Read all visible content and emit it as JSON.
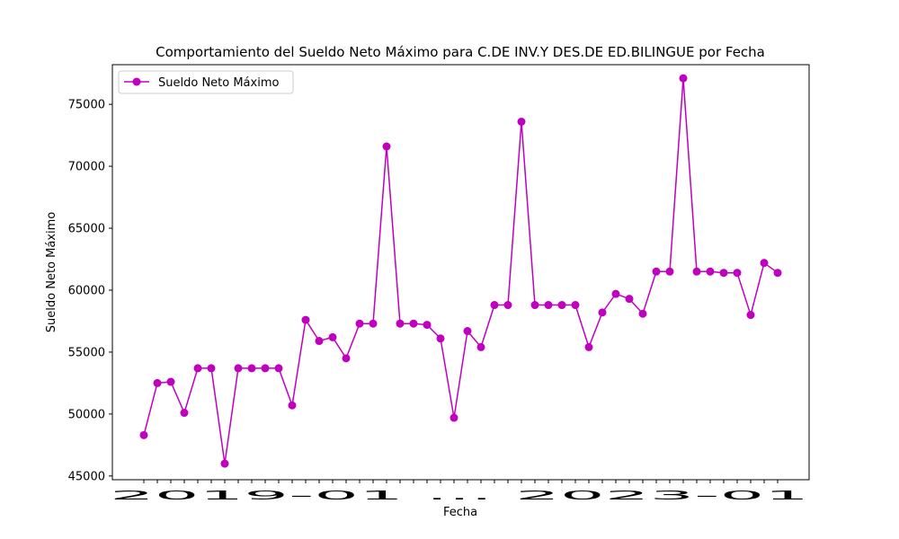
{
  "chart_data": {
    "type": "line",
    "title": "Comportamiento del Sueldo Neto Máximo para C.DE INV.Y DES.DE ED.BILINGUE por Fecha",
    "xlabel": "Fecha",
    "ylabel": "Sueldo Neto Máximo",
    "ylim": [
      44700,
      78200
    ],
    "yticks": [
      45000,
      50000,
      55000,
      60000,
      65000,
      70000,
      75000
    ],
    "grid": false,
    "legend_position": "top-left",
    "line_color": "#bf00bf",
    "series": [
      {
        "name": "Sueldo Neto Máximo",
        "values": [
          48300,
          52500,
          52600,
          50100,
          53700,
          53700,
          46000,
          53700,
          53700,
          53700,
          53700,
          50700,
          57600,
          55900,
          56200,
          54500,
          57300,
          57300,
          71600,
          57300,
          57300,
          57200,
          56100,
          49700,
          56700,
          55400,
          58800,
          58800,
          73600,
          58800,
          58800,
          58800,
          58800,
          55400,
          58200,
          59700,
          59300,
          58100,
          61500,
          61500,
          77100,
          61500,
          61500,
          61400,
          61400,
          58000,
          62200,
          61400
        ]
      }
    ],
    "x_tick_label_visible": "2019-01 ... 2023-01"
  }
}
